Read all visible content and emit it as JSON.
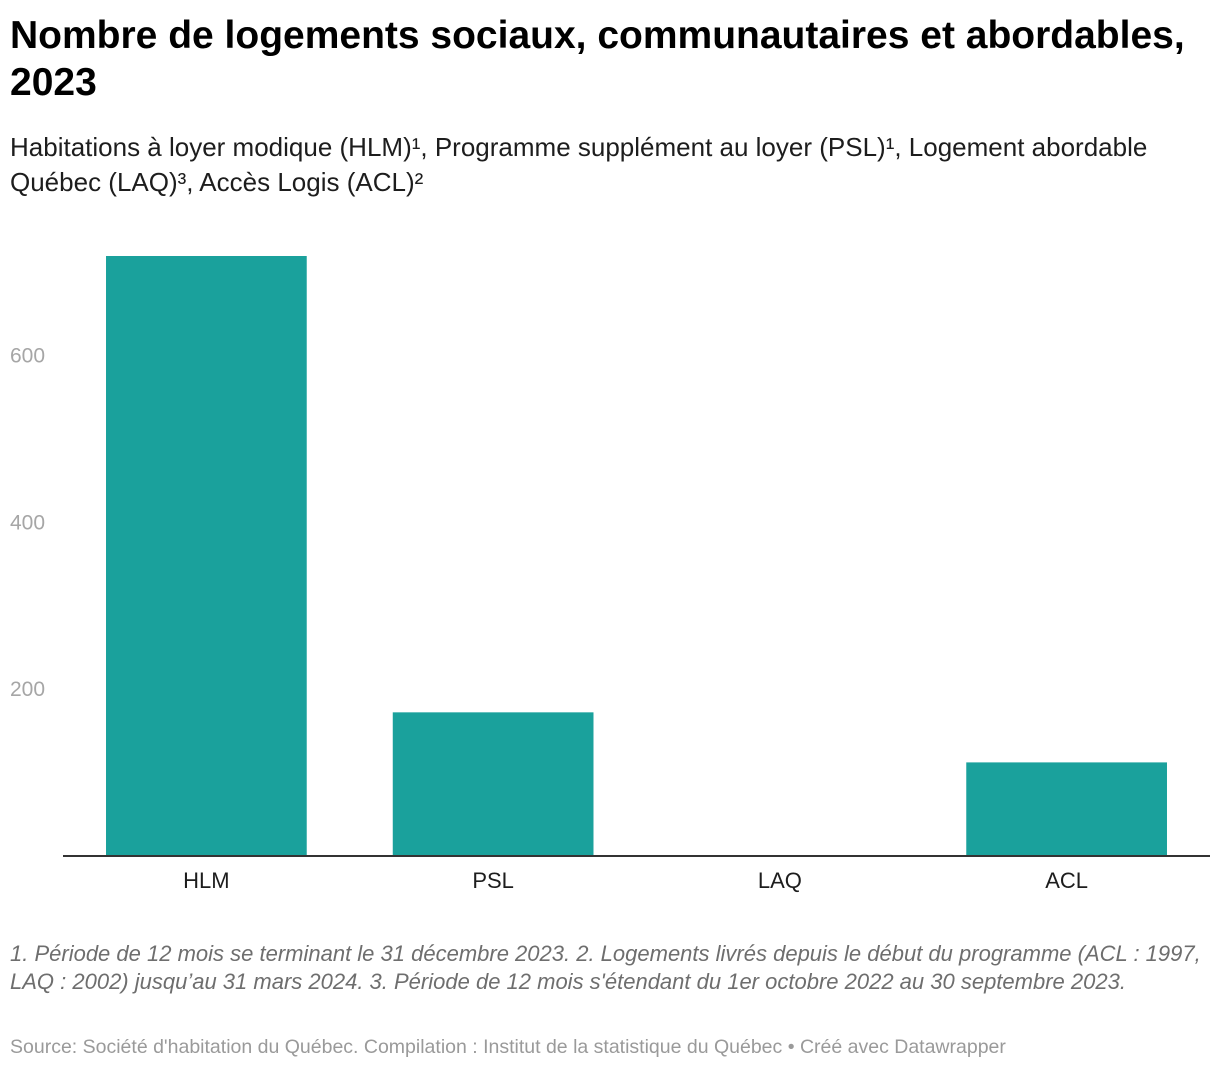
{
  "title": "Nombre de logements sociaux, communautaires et abordables, 2023",
  "subtitle": "Habitations à loyer modique (HLM)¹, Programme supplément au loyer (PSL)¹, Logement abordable Québec (LAQ)³, Accès Logis (ACL)²",
  "notes": "1. Période de 12 mois se terminant le 31 décembre 2023. 2. Logements livrés depuis le début du programme (ACL : 1997, LAQ : 2002) jusqu’au 31 mars 2024. 3. Période de 12 mois s'étendant du 1er octobre 2022 au 30 septembre 2023.",
  "source": "Source: Société d'habitation du Québec. Compilation : Institut de la statistique du Québec • Créé avec Datawrapper",
  "chart_data": {
    "type": "bar",
    "categories": [
      "HLM",
      "PSL",
      "LAQ",
      "ACL"
    ],
    "values": [
      718,
      171,
      0,
      111
    ],
    "title": "Nombre de logements sociaux, communautaires et abordables, 2023",
    "xlabel": "",
    "ylabel": "",
    "ylim": [
      0,
      718
    ],
    "yticks": [
      200,
      400,
      600
    ],
    "grid": false,
    "bar_color": "#1aa19c",
    "axis_color": "#333333",
    "tick_color": "#a6a6a6"
  }
}
